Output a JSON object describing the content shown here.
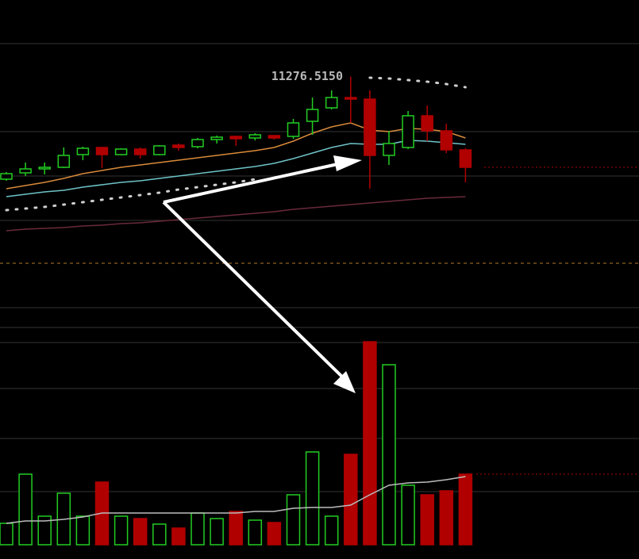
{
  "chart_data": [
    {
      "type": "candlestick",
      "open": [
        10630,
        10670,
        10695,
        10705,
        10785,
        10830,
        10785,
        10820,
        10785,
        10845,
        10835,
        10880,
        10900,
        10890,
        10905,
        10900,
        10995,
        11080,
        11145,
        11135,
        10780,
        10830,
        11030,
        10935,
        10815
      ],
      "high": [
        10675,
        10735,
        10735,
        10830,
        10835,
        10835,
        10825,
        10830,
        10845,
        10855,
        10890,
        10905,
        10905,
        10920,
        10910,
        11010,
        11145,
        11190,
        11276.515,
        11190,
        10935,
        11060,
        11095,
        10980,
        10825
      ],
      "low": [
        10620,
        10650,
        10660,
        10700,
        10750,
        10700,
        10780,
        10760,
        10780,
        10810,
        10825,
        10855,
        10840,
        10875,
        10880,
        10885,
        10910,
        11070,
        10985,
        10570,
        10720,
        10820,
        10870,
        10795,
        10610
      ],
      "close": [
        10665,
        10695,
        10705,
        10780,
        10825,
        10785,
        10820,
        10785,
        10840,
        10830,
        10880,
        10895,
        10885,
        10910,
        10890,
        10985,
        11070,
        11145,
        11135,
        10780,
        10855,
        11030,
        10935,
        10815,
        10705
      ],
      "up_color": "#22cc22",
      "down_color": "#b00000",
      "ylim": [
        9760,
        11760
      ],
      "lines": [
        {
          "color": "#d98a3a",
          "style": "solid",
          "values": [
            10570,
            10590,
            10610,
            10635,
            10665,
            10685,
            10705,
            10720,
            10735,
            10750,
            10765,
            10780,
            10795,
            10810,
            10830,
            10870,
            10920,
            10960,
            10985,
            10940,
            10930,
            10950,
            10945,
            10930,
            10890
          ]
        },
        {
          "color": "#6fc3c8",
          "style": "solid",
          "values": [
            10520,
            10535,
            10550,
            10560,
            10580,
            10595,
            10610,
            10620,
            10635,
            10650,
            10665,
            10680,
            10695,
            10710,
            10730,
            10760,
            10795,
            10830,
            10855,
            10850,
            10850,
            10875,
            10870,
            10860,
            10850
          ]
        },
        {
          "color": "#6a2a3a",
          "style": "solid",
          "values": [
            10305,
            10315,
            10320,
            10325,
            10335,
            10340,
            10350,
            10355,
            10365,
            10375,
            10385,
            10395,
            10405,
            10415,
            10425,
            10440,
            10450,
            10460,
            10470,
            10480,
            10490,
            10500,
            10510,
            10515,
            10520
          ]
        },
        {
          "color": "#cfcfcf",
          "style": "dotted",
          "values": [
            10435,
            10445,
            10455,
            10470,
            10485,
            10500,
            10515,
            10530,
            10545,
            10565,
            10580,
            10595,
            10610,
            10630,
            null,
            null,
            null,
            null,
            null,
            11270,
            11265,
            11255,
            11245,
            11230,
            11210
          ]
        }
      ],
      "annotations": [
        {
          "value": 11276.515,
          "label": "11276.5150"
        }
      ]
    },
    {
      "type": "bar",
      "values": [
        270,
        890,
        360,
        650,
        360,
        790,
        360,
        330,
        260,
        210,
        400,
        330,
        420,
        310,
        280,
        630,
        1170,
        360,
        1140,
        2560,
        2270,
        750,
        630,
        680,
        890
      ],
      "up": [
        true,
        true,
        true,
        true,
        true,
        false,
        true,
        false,
        true,
        false,
        true,
        true,
        false,
        true,
        false,
        true,
        true,
        true,
        false,
        false,
        true,
        true,
        false,
        false,
        false
      ],
      "up_color": "#22cc22",
      "down_color": "#b00000",
      "ylim": [
        0,
        2800
      ],
      "ma": {
        "color": "#bdbdbd",
        "values": [
          270,
          300,
          300,
          320,
          350,
          400,
          400,
          400,
          400,
          400,
          400,
          400,
          400,
          420,
          420,
          460,
          470,
          470,
          500,
          630,
          750,
          780,
          790,
          820,
          860
        ]
      }
    }
  ]
}
